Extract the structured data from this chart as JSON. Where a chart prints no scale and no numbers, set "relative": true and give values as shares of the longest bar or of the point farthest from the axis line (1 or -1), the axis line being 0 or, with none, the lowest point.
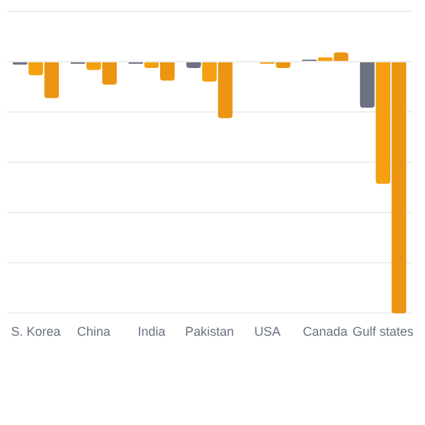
{
  "chart_data": {
    "type": "bar",
    "relative": true,
    "grid": "y",
    "legend": false,
    "categories": [
      "S. Korea",
      "China",
      "India",
      "Pakistan",
      "USA",
      "Canada",
      "Gulf states"
    ],
    "series": [
      {
        "color": "#6b7280",
        "values": [
          -0.012,
          -0.008,
          -0.008,
          -0.025,
          null,
          0.008,
          -0.183
        ]
      },
      {
        "color": "#f5a010",
        "values": [
          -0.054,
          -0.033,
          -0.025,
          -0.079,
          -0.008,
          0.017,
          -0.485
        ]
      },
      {
        "color": "#ec9512",
        "values": [
          -0.145,
          -0.091,
          -0.075,
          -0.224,
          -0.025,
          0.037,
          -1
        ]
      }
    ]
  }
}
